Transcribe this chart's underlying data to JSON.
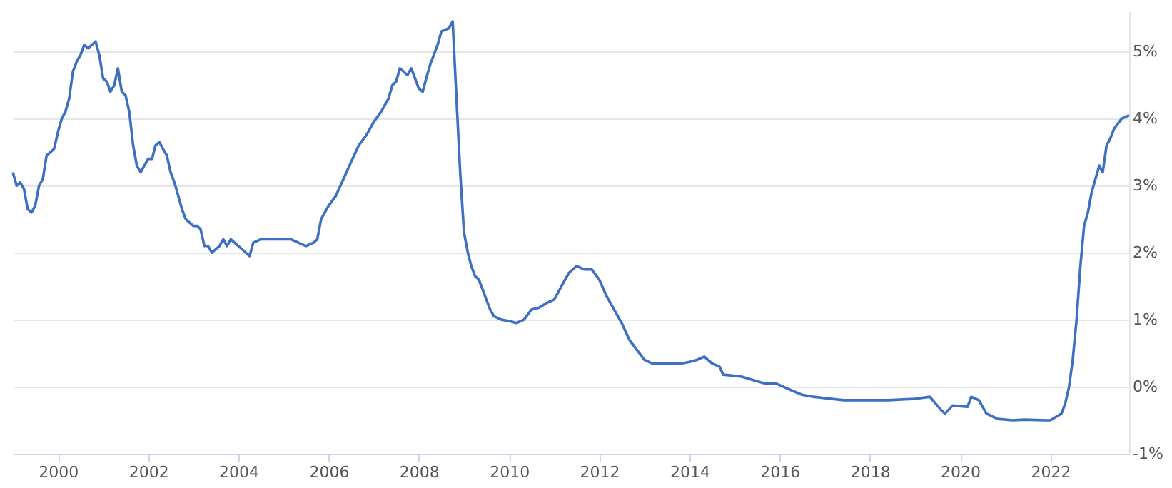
{
  "chart_data": {
    "type": "line",
    "x": [
      "1999-01",
      "1999-02",
      "1999-03",
      "1999-04",
      "1999-05",
      "1999-06",
      "1999-07",
      "1999-08",
      "1999-09",
      "1999-10",
      "1999-11",
      "1999-12",
      "2000-01",
      "2000-02",
      "2000-03",
      "2000-04",
      "2000-05",
      "2000-06",
      "2000-07",
      "2000-08",
      "2000-09",
      "2000-10",
      "2000-11",
      "2000-12",
      "2001-01",
      "2001-02",
      "2001-03",
      "2001-04",
      "2001-05",
      "2001-06",
      "2001-07",
      "2001-08",
      "2001-09",
      "2001-10",
      "2001-11",
      "2001-12",
      "2002-01",
      "2002-02",
      "2002-03",
      "2002-04",
      "2002-05",
      "2002-06",
      "2002-07",
      "2002-08",
      "2002-09",
      "2002-10",
      "2002-11",
      "2002-12",
      "2003-01",
      "2003-02",
      "2003-03",
      "2003-04",
      "2003-05",
      "2003-06",
      "2003-07",
      "2003-08",
      "2003-09",
      "2003-10",
      "2003-11",
      "2003-12",
      "2004-01",
      "2004-02",
      "2004-04",
      "2004-05",
      "2004-07",
      "2004-09",
      "2004-11",
      "2005-01",
      "2005-03",
      "2005-05",
      "2005-07",
      "2005-09",
      "2005-10",
      "2005-11",
      "2005-12",
      "2006-01",
      "2006-03",
      "2006-05",
      "2006-07",
      "2006-09",
      "2006-11",
      "2007-01",
      "2007-03",
      "2007-05",
      "2007-06",
      "2007-07",
      "2007-08",
      "2007-10",
      "2007-11",
      "2008-01",
      "2008-02",
      "2008-03",
      "2008-04",
      "2008-05",
      "2008-06",
      "2008-07",
      "2008-09",
      "2008-10",
      "2008-11",
      "2008-12",
      "2009-01",
      "2009-02",
      "2009-03",
      "2009-04",
      "2009-05",
      "2009-06",
      "2009-07",
      "2009-08",
      "2009-09",
      "2009-11",
      "2010-01",
      "2010-03",
      "2010-05",
      "2010-07",
      "2010-09",
      "2010-11",
      "2011-01",
      "2011-03",
      "2011-05",
      "2011-07",
      "2011-09",
      "2011-11",
      "2012-01",
      "2012-03",
      "2012-05",
      "2012-07",
      "2012-09",
      "2012-11",
      "2013-01",
      "2013-03",
      "2013-05",
      "2013-07",
      "2013-09",
      "2013-11",
      "2014-01",
      "2014-03",
      "2014-05",
      "2014-07",
      "2014-09",
      "2014-10",
      "2014-12",
      "2015-03",
      "2015-06",
      "2015-09",
      "2015-12",
      "2016-02",
      "2016-04",
      "2016-07",
      "2016-10",
      "2017-01",
      "2017-06",
      "2018-01",
      "2018-06",
      "2019-01",
      "2019-05",
      "2019-08",
      "2019-09",
      "2019-11",
      "2020-03",
      "2020-04",
      "2020-06",
      "2020-08",
      "2020-11",
      "2021-03",
      "2021-06",
      "2021-12",
      "2022-01",
      "2022-04",
      "2022-05",
      "2022-06",
      "2022-07",
      "2022-08",
      "2022-09",
      "2022-10",
      "2022-11",
      "2022-12",
      "2023-02",
      "2023-03",
      "2023-04",
      "2023-05",
      "2023-06",
      "2023-08",
      "2023-10"
    ],
    "series": [
      {
        "color": "#3d6fc2",
        "values": [
          3.2,
          3.0,
          3.05,
          2.95,
          2.65,
          2.6,
          2.7,
          3.0,
          3.1,
          3.45,
          3.5,
          3.55,
          3.8,
          4.0,
          4.1,
          4.3,
          4.7,
          4.85,
          4.95,
          5.1,
          5.05,
          5.1,
          5.15,
          4.95,
          4.6,
          4.55,
          4.4,
          4.5,
          4.75,
          4.4,
          4.35,
          4.1,
          3.6,
          3.3,
          3.2,
          3.3,
          3.4,
          3.4,
          3.6,
          3.65,
          3.55,
          3.45,
          3.2,
          3.05,
          2.85,
          2.65,
          2.5,
          2.45,
          2.4,
          2.4,
          2.35,
          2.1,
          2.1,
          2.0,
          2.05,
          2.1,
          2.2,
          2.1,
          2.2,
          2.15,
          2.1,
          2.05,
          1.95,
          2.15,
          2.2,
          2.2,
          2.2,
          2.2,
          2.2,
          2.15,
          2.1,
          2.15,
          2.2,
          2.5,
          2.6,
          2.7,
          2.85,
          3.1,
          3.35,
          3.6,
          3.75,
          3.95,
          4.1,
          4.3,
          4.5,
          4.55,
          4.75,
          4.65,
          4.75,
          4.45,
          4.4,
          4.6,
          4.8,
          4.95,
          5.1,
          5.3,
          5.35,
          5.45,
          4.3,
          3.2,
          2.3,
          2.0,
          1.8,
          1.65,
          1.6,
          1.45,
          1.3,
          1.15,
          1.05,
          1.0,
          0.98,
          0.95,
          1.0,
          1.15,
          1.18,
          1.25,
          1.3,
          1.5,
          1.7,
          1.8,
          1.75,
          1.75,
          1.6,
          1.35,
          1.15,
          0.95,
          0.7,
          0.55,
          0.4,
          0.35,
          0.35,
          0.35,
          0.35,
          0.35,
          0.37,
          0.4,
          0.45,
          0.35,
          0.3,
          0.18,
          0.17,
          0.15,
          0.1,
          0.05,
          0.05,
          0.0,
          -0.05,
          -0.12,
          -0.15,
          -0.17,
          -0.2,
          -0.2,
          -0.2,
          -0.18,
          -0.15,
          -0.35,
          -0.4,
          -0.28,
          -0.3,
          -0.15,
          -0.2,
          -0.4,
          -0.48,
          -0.5,
          -0.49,
          -0.5,
          -0.5,
          -0.4,
          -0.25,
          0.0,
          0.4,
          1.0,
          1.8,
          2.4,
          2.6,
          2.9,
          3.3,
          3.2,
          3.6,
          3.7,
          3.85,
          4.0,
          4.05
        ]
      }
    ],
    "xlim": [
      "1999-01",
      "2023-10"
    ],
    "xticks": [
      "2000",
      "2002",
      "2004",
      "2006",
      "2008",
      "2010",
      "2012",
      "2014",
      "2016",
      "2018",
      "2020",
      "2022"
    ],
    "ylim": [
      -1,
      5.6
    ],
    "yticks": [
      {
        "value": -1,
        "label": "-1%"
      },
      {
        "value": 0,
        "label": "0%"
      },
      {
        "value": 1,
        "label": "1%"
      },
      {
        "value": 2,
        "label": "2%"
      },
      {
        "value": 3,
        "label": "3%"
      },
      {
        "value": 4,
        "label": "4%"
      },
      {
        "value": 5,
        "label": "5%"
      }
    ],
    "grid": "y",
    "line_style": "solid",
    "marker": "none"
  }
}
